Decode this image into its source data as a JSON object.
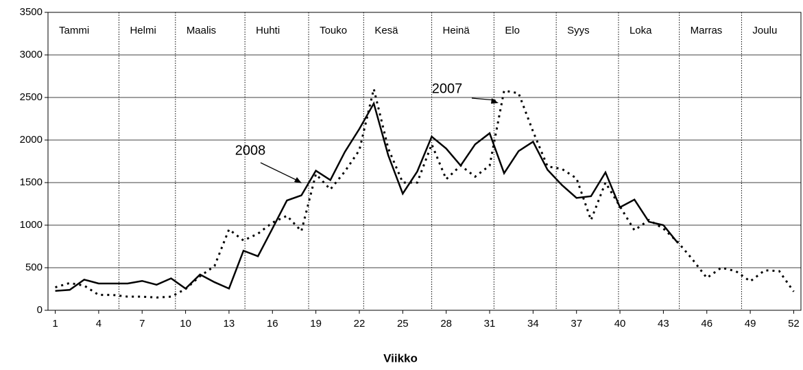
{
  "chart_data": {
    "type": "line",
    "x_label": "Viikko",
    "x": [
      1,
      2,
      3,
      4,
      5,
      6,
      7,
      8,
      9,
      10,
      11,
      12,
      13,
      14,
      15,
      16,
      17,
      18,
      19,
      20,
      21,
      22,
      23,
      24,
      25,
      26,
      27,
      28,
      29,
      30,
      31,
      32,
      33,
      34,
      35,
      36,
      37,
      38,
      39,
      40,
      41,
      42,
      43,
      44,
      45,
      46,
      47,
      48,
      49,
      50,
      51,
      52
    ],
    "series": [
      {
        "name": "2008",
        "color": "#000000",
        "dash": "solid",
        "values": [
          228,
          240,
          360,
          315,
          315,
          315,
          345,
          300,
          375,
          255,
          420,
          330,
          255,
          700,
          635,
          960,
          1290,
          1350,
          1640,
          1530,
          1860,
          2130,
          2430,
          1820,
          1370,
          1630,
          2040,
          1900,
          1700,
          1950,
          2080,
          1610,
          1870,
          1980,
          1650,
          1470,
          1320,
          1340,
          1620,
          1210,
          1300,
          1040,
          1000,
          790,
          null,
          null,
          null,
          null,
          null,
          null,
          null,
          null
        ]
      },
      {
        "name": "2007",
        "color": "#000000",
        "dash": "dotted",
        "values": [
          270,
          320,
          290,
          180,
          180,
          160,
          160,
          150,
          160,
          250,
          400,
          520,
          950,
          820,
          900,
          1030,
          1110,
          930,
          1600,
          1420,
          1630,
          1880,
          2600,
          1900,
          1500,
          1500,
          1950,
          1540,
          1700,
          1570,
          1700,
          2580,
          2550,
          2100,
          1690,
          1660,
          1550,
          1060,
          1500,
          1220,
          940,
          1060,
          960,
          800,
          600,
          380,
          500,
          460,
          340,
          470,
          460,
          220
        ]
      }
    ],
    "xlim": [
      0.5,
      52.5
    ],
    "xticks": [
      1,
      4,
      7,
      10,
      13,
      16,
      19,
      22,
      25,
      28,
      31,
      34,
      37,
      40,
      43,
      46,
      49,
      52
    ],
    "ylim": [
      0,
      3500
    ],
    "yticks": [
      0,
      500,
      1000,
      1500,
      2000,
      2500,
      3000,
      3500
    ],
    "grid": true,
    "months": [
      "Tammi",
      "Helmi",
      "Maalis",
      "Huhti",
      "Touko",
      "Kesä",
      "Heinä",
      "Elo",
      "Syys",
      "Loka",
      "Marras",
      "Joulu"
    ],
    "month_boundaries": [
      5.4,
      9.3,
      14.1,
      18.5,
      22.3,
      27.0,
      31.3,
      35.6,
      39.9,
      44.1,
      48.4
    ]
  }
}
